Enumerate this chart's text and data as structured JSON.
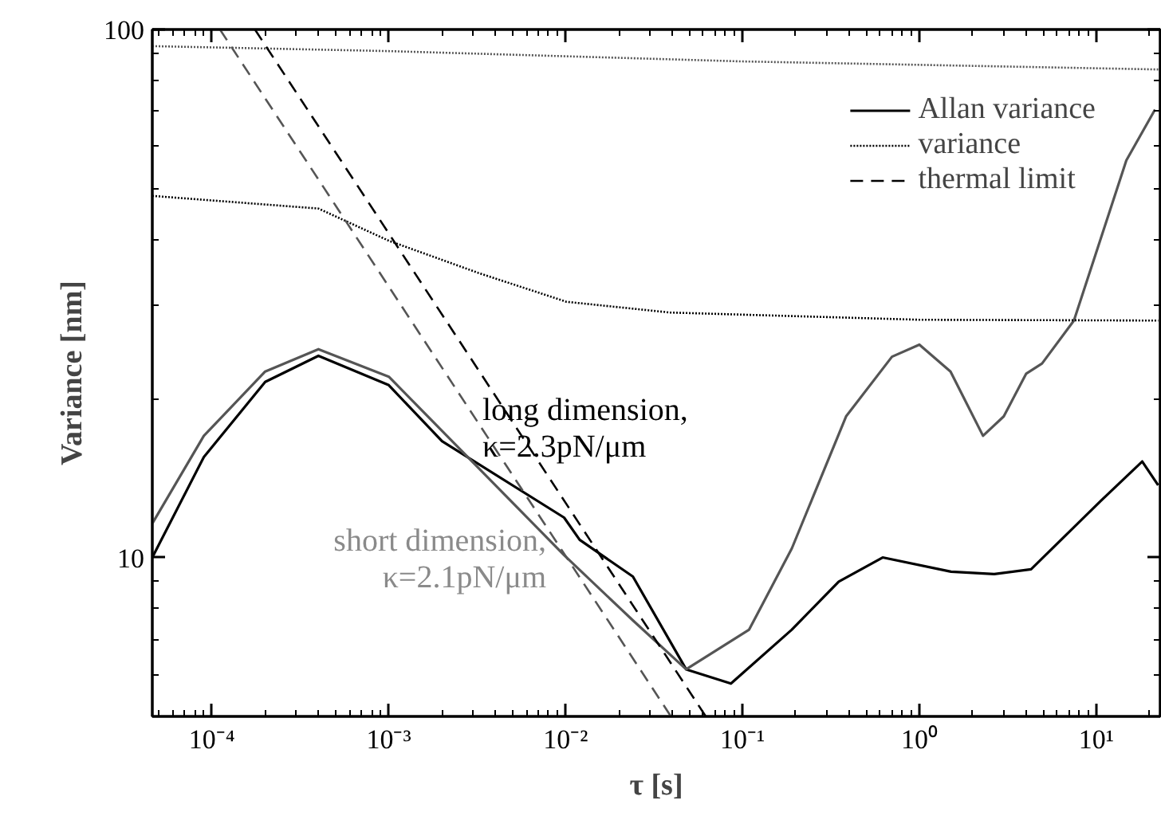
{
  "chart_data": {
    "type": "line",
    "xlabel": "τ [s]",
    "ylabel": "Variance [nm]",
    "log": "xy",
    "legend": "top right",
    "grid": false,
    "xlim": [
      4.6e-05,
      23
    ],
    "ylim": [
      5,
      100
    ],
    "xticks": [
      {
        "value": 0.0001,
        "label": "10⁻⁴"
      },
      {
        "value": 0.001,
        "label": "10⁻³"
      },
      {
        "value": 0.01,
        "label": "10⁻²"
      },
      {
        "value": 0.1,
        "label": "10⁻¹"
      },
      {
        "value": 1,
        "label": "10⁰"
      },
      {
        "value": 10,
        "label": "10¹"
      }
    ],
    "yticks": [
      10,
      100
    ],
    "annotations": [
      "long dimension,\nκ=2.3pN/μm",
      "short dimension,\nκ=2.1pN/μm"
    ],
    "series": [
      {
        "name": "Allan variance",
        "color": "#000000",
        "line_style": "solid",
        "x": [
          4.6e-05,
          9e-05,
          0.0002,
          0.0004,
          0.001,
          0.002,
          0.0098,
          0.012,
          0.024,
          0.048,
          0.086,
          0.19,
          0.35,
          0.62,
          1.51,
          2.65,
          4.28,
          10.6,
          18.2,
          22.4
        ],
        "values": [
          10.0,
          15.5,
          21.5,
          24.1,
          21.2,
          16.6,
          11.9,
          10.8,
          9.2,
          6.14,
          5.77,
          7.3,
          9.0,
          10.0,
          9.4,
          9.3,
          9.5,
          12.8,
          15.2,
          13.7
        ]
      },
      {
        "color": "#555555",
        "line_style": "solid",
        "x": [
          4.6e-05,
          9e-05,
          0.0002,
          0.0004,
          0.001,
          0.0098,
          0.024,
          0.048,
          0.109,
          0.19,
          0.385,
          0.7,
          1.0,
          1.5,
          2.29,
          3.0,
          4.02,
          4.94,
          7.48,
          14.8,
          21.5
        ],
        "values": [
          11.6,
          17.0,
          22.5,
          24.8,
          22.0,
          10.1,
          7.6,
          6.14,
          7.3,
          10.4,
          18.5,
          24.0,
          25.3,
          22.5,
          17.0,
          18.5,
          22.3,
          23.3,
          28.1,
          56.5,
          70.5
        ]
      },
      {
        "name": "variance",
        "color": "#000000",
        "line_style": "dotted",
        "x": [
          4.6e-05,
          0.0004,
          0.001,
          0.0032,
          0.0101,
          0.039,
          1.0,
          22.4
        ],
        "values": [
          48.4,
          45.8,
          39.8,
          34.6,
          30.5,
          29.1,
          28.2,
          28.1
        ]
      },
      {
        "color": "#555555",
        "line_style": "dotted",
        "x": [
          4.6e-05,
          0.001,
          0.1,
          22.4
        ],
        "values": [
          93,
          91,
          87,
          84
        ]
      },
      {
        "name": "thermal limit",
        "color": "#000000",
        "line_style": "dashed",
        "x": [
          0.000175,
          0.062
        ],
        "values": [
          100,
          5
        ]
      },
      {
        "color": "#555555",
        "line_style": "dashed",
        "x": [
          0.000111,
          0.0394
        ],
        "values": [
          100,
          5
        ]
      }
    ]
  }
}
